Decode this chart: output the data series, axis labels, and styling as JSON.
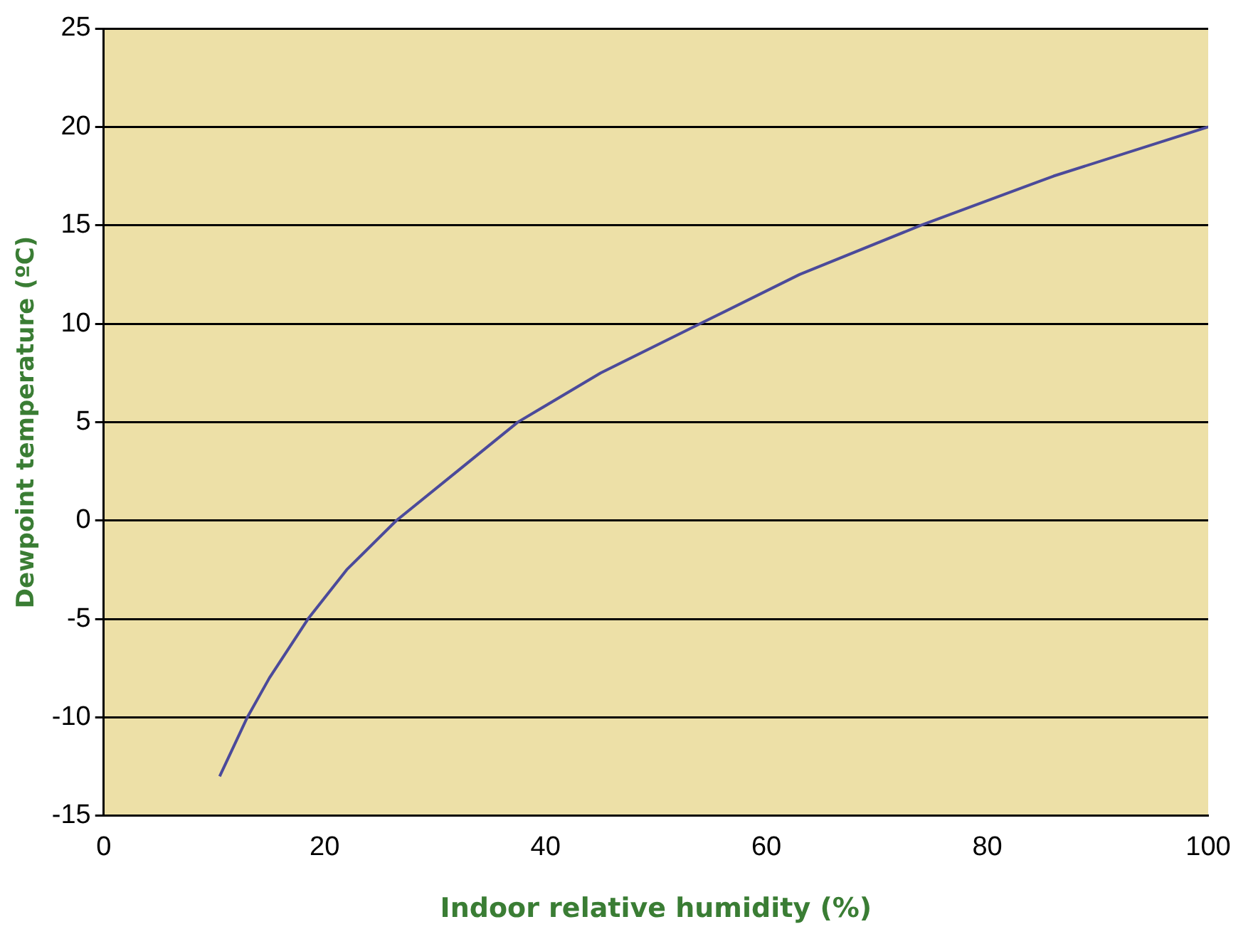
{
  "chart_data": {
    "type": "line",
    "xlabel": "Indoor relative humidity (%)",
    "ylabel": "Dewpoint temperature (ºC)",
    "x": [
      10.5,
      13,
      15,
      18.5,
      22,
      26.5,
      32,
      37.5,
      45,
      54,
      63,
      74,
      86,
      100
    ],
    "series": [
      {
        "color": "#4b4a9a",
        "values": [
          -13,
          -10,
          -8,
          -5,
          -2.5,
          0,
          2.5,
          5,
          7.5,
          10,
          12.5,
          15,
          17.5,
          20
        ]
      }
    ],
    "xlim": [
      0,
      100
    ],
    "xticks": [
      0,
      20,
      40,
      60,
      80,
      100
    ],
    "ylim": [
      -15,
      25
    ],
    "yticks": [
      -15,
      -10,
      -5,
      0,
      5,
      10,
      15,
      20,
      25
    ],
    "grid": "y",
    "legend": false,
    "marker": "none",
    "line_style": "solid"
  }
}
